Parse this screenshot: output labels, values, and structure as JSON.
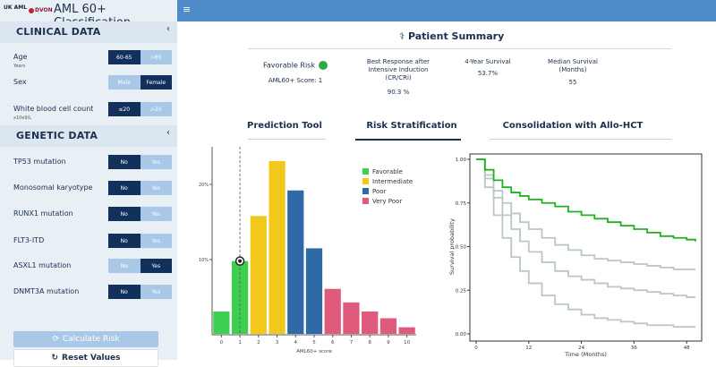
{
  "header": {
    "logo1": "UK AML",
    "logo2": "DVON",
    "title": "AML 60+ Classification",
    "menu_icon": "hamburger-icon"
  },
  "sidebar": {
    "clinical": {
      "title": "CLINICAL DATA",
      "fields": [
        {
          "label": "Age",
          "sub": "Years",
          "options": [
            "60-65",
            ">65"
          ],
          "selected": 0
        },
        {
          "label": "Sex",
          "sub": "",
          "options": [
            "Male",
            "Female"
          ],
          "selected": 1
        },
        {
          "label": "White blood cell count",
          "sub": "x10e9/L",
          "options": [
            "≤20",
            ">20"
          ],
          "selected": 0
        }
      ]
    },
    "genetic": {
      "title": "GENETIC DATA",
      "fields": [
        {
          "label": "TP53 mutation",
          "options": [
            "No",
            "Yes"
          ],
          "selected": 0
        },
        {
          "label": "Monosomal karyotype",
          "options": [
            "No",
            "Yes"
          ],
          "selected": 0
        },
        {
          "label": "RUNX1 mutation",
          "options": [
            "No",
            "Yes"
          ],
          "selected": 0
        },
        {
          "label": "FLT3-ITD",
          "options": [
            "No",
            "Yes"
          ],
          "selected": 0
        },
        {
          "label": "ASXL1 mutation",
          "options": [
            "No",
            "Yes"
          ],
          "selected": 1
        },
        {
          "label": "DNMT3A mutation",
          "options": [
            "No",
            "Yes"
          ],
          "selected": 0
        }
      ]
    },
    "calculate_label": "Calculate Risk",
    "reset_label": "Reset Values"
  },
  "summary": {
    "title": "Patient Summary",
    "risk_label": "Favorable Risk",
    "score_label": "AML60+ Score: 1",
    "response_label": "Best Response after Intensive Induction (CR/CRi)",
    "response_value": "90.3 %",
    "survival4_label": "4-Year Survival",
    "survival4_value": "53.7%",
    "median_label": "Median Survival (Months)",
    "median_value": "55",
    "risk_color": "#2eaa3e"
  },
  "tabs": [
    {
      "label": "Prediction Tool",
      "active": false
    },
    {
      "label": "Risk Stratification",
      "active": true
    },
    {
      "label": "Consolidation with Allo-HCT",
      "active": false
    }
  ],
  "chart_data": [
    {
      "type": "bar",
      "categories": [
        "0",
        "1",
        "2",
        "3",
        "4",
        "5",
        "6",
        "7",
        "8",
        "9",
        "10"
      ],
      "values": [
        3.1,
        9.8,
        15.8,
        23.1,
        19.2,
        11.5,
        6.1,
        4.3,
        3.1,
        2.2,
        1.0
      ],
      "risk_group": [
        "Favorable",
        "Favorable",
        "Intermediate",
        "Intermediate",
        "Poor",
        "Poor",
        "Very Poor",
        "Very Poor",
        "Very Poor",
        "Very Poor",
        "Very Poor"
      ],
      "xlabel": "AML60+ score",
      "ylabel": "",
      "yticks": [
        "10%",
        "20%"
      ],
      "ylim": [
        0,
        25
      ],
      "marker_x": 1,
      "legend": [
        {
          "name": "Favorable",
          "color": "#3ecf50"
        },
        {
          "name": "Intermediate",
          "color": "#f2c81b"
        },
        {
          "name": "Poor",
          "color": "#2d6aa6"
        },
        {
          "name": "Very Poor",
          "color": "#e05a7c"
        }
      ],
      "legend_position": "top-right"
    },
    {
      "type": "line",
      "xlabel": "Time (Months)",
      "ylabel": "Survival probability",
      "xlim": [
        0,
        50
      ],
      "ylim": [
        0,
        1
      ],
      "xticks": [
        0,
        12,
        24,
        36,
        48
      ],
      "yticks": [
        "0.00",
        "0.25",
        "0.50",
        "0.75",
        "1.00"
      ],
      "series": [
        {
          "color": "#20b020",
          "x": [
            0,
            2,
            4,
            6,
            8,
            10,
            12,
            15,
            18,
            21,
            24,
            27,
            30,
            33,
            36,
            39,
            42,
            45,
            48,
            50
          ],
          "y": [
            1.0,
            0.94,
            0.88,
            0.84,
            0.81,
            0.79,
            0.77,
            0.75,
            0.73,
            0.7,
            0.68,
            0.66,
            0.64,
            0.62,
            0.6,
            0.58,
            0.56,
            0.55,
            0.54,
            0.53
          ]
        },
        {
          "color": "#b9c7c6",
          "x": [
            0,
            2,
            4,
            6,
            8,
            10,
            12,
            15,
            18,
            21,
            24,
            27,
            30,
            33,
            36,
            39,
            42,
            45,
            48,
            50
          ],
          "y": [
            1.0,
            0.91,
            0.82,
            0.75,
            0.69,
            0.64,
            0.6,
            0.55,
            0.51,
            0.48,
            0.45,
            0.43,
            0.42,
            0.41,
            0.4,
            0.39,
            0.38,
            0.37,
            0.37,
            0.37
          ]
        },
        {
          "color": "#b9c7c6",
          "x": [
            0,
            2,
            4,
            6,
            8,
            10,
            12,
            15,
            18,
            21,
            24,
            27,
            30,
            33,
            36,
            39,
            42,
            45,
            48,
            50
          ],
          "y": [
            1.0,
            0.89,
            0.78,
            0.68,
            0.6,
            0.53,
            0.47,
            0.41,
            0.36,
            0.33,
            0.31,
            0.29,
            0.27,
            0.26,
            0.25,
            0.24,
            0.23,
            0.22,
            0.21,
            0.21
          ]
        },
        {
          "color": "#b9c7c6",
          "x": [
            0,
            2,
            4,
            6,
            8,
            10,
            12,
            15,
            18,
            21,
            24,
            27,
            30,
            33,
            36,
            39,
            42,
            45,
            48,
            50
          ],
          "y": [
            1.0,
            0.84,
            0.68,
            0.55,
            0.44,
            0.36,
            0.29,
            0.22,
            0.17,
            0.14,
            0.11,
            0.09,
            0.08,
            0.07,
            0.06,
            0.05,
            0.05,
            0.04,
            0.04,
            0.04
          ]
        }
      ]
    }
  ]
}
